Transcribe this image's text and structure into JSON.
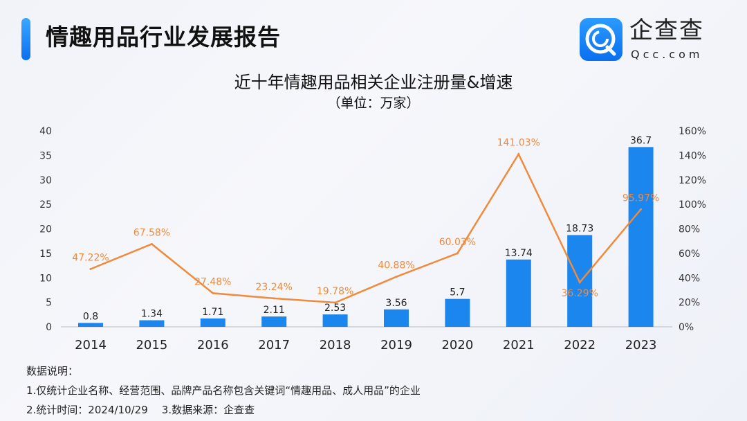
{
  "header": {
    "title": "情趣用品行业发展报告"
  },
  "logo": {
    "name": "企查查",
    "url": "Qcc.com",
    "color": "#1a86f5"
  },
  "chart_data": {
    "type": "bar+line",
    "title": "近十年情趣用品相关企业注册量&增速",
    "subtitle": "（单位：万家）",
    "categories": [
      "2014",
      "2015",
      "2016",
      "2017",
      "2018",
      "2019",
      "2020",
      "2021",
      "2022",
      "2023"
    ],
    "series": [
      {
        "type": "bar",
        "axis": "left",
        "color": "#1a86ee",
        "values": [
          0.8,
          1.34,
          1.71,
          2.11,
          2.53,
          3.56,
          5.7,
          13.74,
          18.73,
          36.7
        ],
        "labels": [
          "0.8",
          "1.34",
          "1.71",
          "2.11",
          "2.53",
          "3.56",
          "5.7",
          "13.74",
          "18.73",
          "36.7"
        ]
      },
      {
        "type": "line",
        "axis": "right",
        "color": "#f08a3c",
        "values": [
          47.22,
          67.58,
          27.48,
          23.24,
          19.78,
          40.88,
          60.03,
          141.03,
          36.29,
          95.97
        ],
        "labels": [
          "47.22%",
          "67.58%",
          "27.48%",
          "23.24%",
          "19.78%",
          "40.88%",
          "60.03%",
          "141.03%",
          "36.29%",
          "95.97%"
        ]
      }
    ],
    "y_left": {
      "range": [
        0,
        40
      ],
      "ticks": [
        "0",
        "5",
        "10",
        "15",
        "20",
        "25",
        "30",
        "35",
        "40"
      ]
    },
    "y_right": {
      "range": [
        0,
        160
      ],
      "ticks": [
        "0%",
        "20%",
        "40%",
        "60%",
        "80%",
        "100%",
        "120%",
        "140%",
        "160%"
      ]
    },
    "grid": false,
    "legend": "none"
  },
  "notes": {
    "heading": "数据说明：",
    "line1": "1.仅统计企业名称、经营范围、品牌产品名称包含关键词“情趣用品、成人用品”的企业",
    "line2a": "2.统计时间：2024/10/29",
    "line2b": "3.数据来源：企查查"
  }
}
